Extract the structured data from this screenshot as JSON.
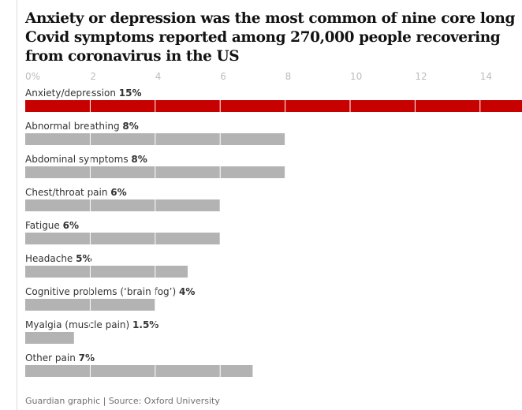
{
  "title": "Anxiety or depression was the most common of nine core long Covid symptoms reported among 270,000 people recovering from coronavirus in the US",
  "source": "Guardian graphic | Source: Oxford University",
  "colors": {
    "highlight": "#c70000",
    "bar": "#b3b3b3",
    "grid": "#ffffff",
    "text": "#333333",
    "tick": "#bdbdbd"
  },
  "chart_data": {
    "type": "bar",
    "orientation": "horizontal",
    "title": "Anxiety or depression was the most common of nine core long Covid symptoms reported among 270,000 people recovering from coronavirus in the US",
    "xlim": [
      0,
      15
    ],
    "ticks": [
      0,
      2,
      4,
      6,
      8,
      10,
      12,
      14
    ],
    "tick_labels": [
      "0%",
      "2",
      "4",
      "6",
      "8",
      "10",
      "12",
      "14"
    ],
    "categories": [
      "Anxiety/depression",
      "Abnormal breathing",
      "Abdominal symptoms",
      "Chest/throat pain",
      "Fatigue",
      "Headache",
      "Cognitive problems (‘brain fog’)",
      "Myalgia (muscle pain)",
      "Other pain"
    ],
    "value_labels": [
      "15%",
      "8%",
      "8%",
      "6%",
      "6%",
      "5%",
      "4%",
      "1.5%",
      "7%"
    ],
    "values": [
      15,
      8,
      8,
      6,
      6,
      5,
      4,
      1.5,
      7
    ],
    "highlight_index": 0,
    "grid": true
  }
}
